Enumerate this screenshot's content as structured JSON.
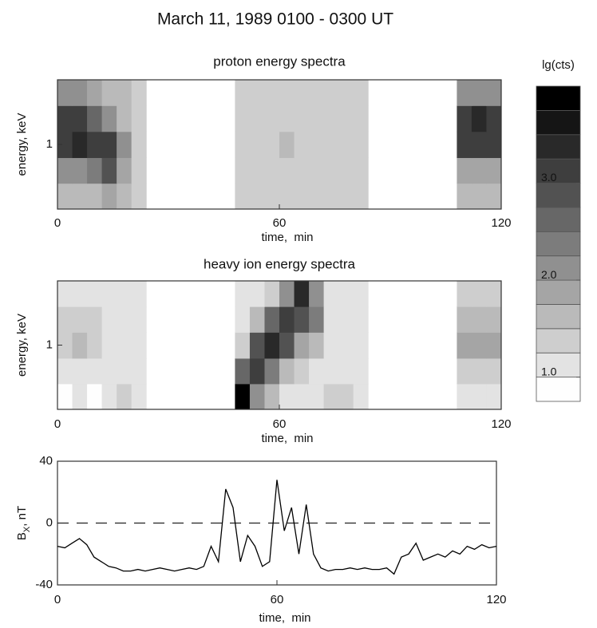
{
  "title": "March 11, 1989   0100  - 0300 UT",
  "chart_data": [
    {
      "type": "heatmap",
      "title": "proton energy spectra",
      "xlabel": "time,  min",
      "ylabel": "energy,  keV",
      "xbins": [
        0,
        4,
        8,
        12,
        16,
        20,
        24,
        28,
        32,
        36,
        40,
        44,
        48,
        52,
        56,
        60,
        64,
        68,
        72,
        76,
        80,
        84,
        88,
        92,
        96,
        100,
        104,
        108,
        112,
        116,
        120
      ],
      "ybins": [
        0.2,
        0.38,
        0.72,
        1.38,
        2.63,
        5
      ],
      "values": [
        [
          1.5,
          1.6,
          1.6,
          1.8,
          1.5,
          1.3,
          null,
          null,
          null,
          null,
          null,
          null,
          1.3,
          1.3,
          1.3,
          1.3,
          1.3,
          1.3,
          1.3,
          1.3,
          1.3,
          null,
          null,
          null,
          null,
          null,
          null,
          1.6,
          1.6,
          1.6
        ],
        [
          2.0,
          2.2,
          2.4,
          2.8,
          1.8,
          1.4,
          null,
          null,
          null,
          null,
          null,
          null,
          1.3,
          1.3,
          1.3,
          1.3,
          1.3,
          1.3,
          1.3,
          1.3,
          1.3,
          null,
          null,
          null,
          null,
          null,
          null,
          1.8,
          1.8,
          1.8
        ],
        [
          3.2,
          3.4,
          3.2,
          3.0,
          2.0,
          1.4,
          null,
          null,
          null,
          null,
          null,
          null,
          1.3,
          1.3,
          1.3,
          1.7,
          1.3,
          1.3,
          1.3,
          1.3,
          1.3,
          null,
          null,
          null,
          null,
          null,
          null,
          3.0,
          3.1,
          3.0
        ],
        [
          3.0,
          3.0,
          2.6,
          2.2,
          1.6,
          1.4,
          null,
          null,
          null,
          null,
          null,
          null,
          1.3,
          1.3,
          1.3,
          1.3,
          1.3,
          1.3,
          1.3,
          1.3,
          1.3,
          null,
          null,
          null,
          null,
          null,
          null,
          3.2,
          3.4,
          3.2
        ],
        [
          2.2,
          2.0,
          1.8,
          1.6,
          1.5,
          1.4,
          null,
          null,
          null,
          null,
          null,
          null,
          1.3,
          1.3,
          1.3,
          1.3,
          1.3,
          1.3,
          1.3,
          1.3,
          1.3,
          null,
          null,
          null,
          null,
          null,
          null,
          2.2,
          2.2,
          2.2
        ]
      ],
      "xlim": [
        0,
        120
      ],
      "xticks": [
        0,
        60,
        120
      ],
      "ylim": [
        0.2,
        5
      ],
      "yticks": [
        1
      ],
      "ylog": true
    },
    {
      "type": "heatmap",
      "title": "heavy ion energy spectra",
      "xlabel": "time,  min",
      "ylabel": "energy,  keV",
      "xbins": [
        0,
        4,
        8,
        12,
        16,
        20,
        24,
        28,
        32,
        36,
        40,
        44,
        48,
        52,
        56,
        60,
        64,
        68,
        72,
        76,
        80,
        84,
        88,
        92,
        96,
        100,
        104,
        108,
        112,
        116,
        120
      ],
      "ybins": [
        0.2,
        0.38,
        0.72,
        1.38,
        2.63,
        5
      ],
      "values": [
        [
          0.9,
          1.0,
          0.9,
          1.0,
          1.3,
          1.0,
          null,
          null,
          null,
          null,
          null,
          null,
          3.8,
          2.0,
          1.6,
          1.2,
          1.1,
          1.1,
          1.3,
          1.3,
          1.0,
          null,
          null,
          null,
          null,
          null,
          null,
          1.0,
          1.0,
          1.0
        ],
        [
          1.1,
          1.2,
          1.1,
          1.1,
          1.0,
          1.0,
          null,
          null,
          null,
          null,
          null,
          null,
          2.5,
          3.2,
          2.4,
          1.6,
          1.3,
          1.2,
          1.1,
          1.1,
          1.0,
          null,
          null,
          null,
          null,
          null,
          null,
          1.4,
          1.4,
          1.4
        ],
        [
          1.4,
          1.6,
          1.4,
          1.2,
          1.0,
          1.0,
          null,
          null,
          null,
          null,
          null,
          null,
          1.4,
          2.8,
          3.4,
          2.8,
          1.8,
          1.6,
          1.1,
          1.0,
          1.0,
          null,
          null,
          null,
          null,
          null,
          null,
          1.8,
          1.8,
          1.8
        ],
        [
          1.3,
          1.4,
          1.3,
          1.1,
          1.0,
          1.0,
          null,
          null,
          null,
          null,
          null,
          null,
          1.1,
          1.6,
          2.6,
          3.0,
          2.8,
          2.4,
          1.2,
          1.0,
          1.0,
          null,
          null,
          null,
          null,
          null,
          null,
          1.7,
          1.7,
          1.7
        ],
        [
          1.1,
          1.2,
          1.0,
          1.0,
          1.0,
          1.0,
          null,
          null,
          null,
          null,
          null,
          null,
          1.0,
          1.1,
          1.3,
          2.0,
          3.4,
          2.2,
          1.1,
          1.0,
          1.0,
          null,
          null,
          null,
          null,
          null,
          null,
          1.3,
          1.3,
          1.3
        ]
      ],
      "xlim": [
        0,
        120
      ],
      "xticks": [
        0,
        60,
        120
      ],
      "ylim": [
        0.2,
        5
      ],
      "yticks": [
        1
      ],
      "ylog": true
    },
    {
      "type": "line",
      "xlabel": "time,  min",
      "ylabel": [
        "B",
        "X",
        ",  nT"
      ],
      "x": [
        0,
        2,
        4,
        6,
        8,
        10,
        12,
        14,
        16,
        18,
        20,
        22,
        24,
        26,
        28,
        30,
        32,
        34,
        36,
        38,
        40,
        42,
        44,
        46,
        48,
        50,
        52,
        54,
        56,
        58,
        60,
        62,
        64,
        66,
        68,
        70,
        72,
        74,
        76,
        78,
        80,
        82,
        84,
        86,
        88,
        90,
        92,
        94,
        96,
        98,
        100,
        102,
        104,
        106,
        108,
        110,
        112,
        114,
        116,
        118,
        120
      ],
      "series": [
        {
          "color": "#000000",
          "values": [
            -15,
            -16,
            -13,
            -10,
            -14,
            -22,
            -25,
            -28,
            -29,
            -31,
            -31,
            -30,
            -31,
            -30,
            -29,
            -30,
            -31,
            -30,
            -29,
            -30,
            -28,
            -15,
            -25,
            22,
            10,
            -25,
            -8,
            -15,
            -28,
            -25,
            28,
            -5,
            10,
            -20,
            12,
            -20,
            -29,
            -31,
            -30,
            -30,
            -29,
            -30,
            -29,
            -30,
            -30,
            -29,
            -33,
            -22,
            -20,
            -13,
            -24,
            -22,
            -20,
            -22,
            -18,
            -20,
            -15,
            -17,
            -14,
            -16,
            -15
          ]
        }
      ],
      "xlim": [
        0,
        120
      ],
      "xticks": [
        0,
        60,
        120
      ],
      "ylim": [
        -40,
        40
      ],
      "yticks": [
        -40,
        0,
        40
      ],
      "hline": 0
    },
    {
      "type": "colorbar",
      "title": "lg(cts)",
      "clim": [
        0.75,
        4.0
      ],
      "step": 0.25,
      "ticks": [
        {
          "value": 1,
          "label": "1.0"
        },
        {
          "value": 2,
          "label": "2.0"
        },
        {
          "value": 3,
          "label": "3.0"
        }
      ]
    }
  ]
}
